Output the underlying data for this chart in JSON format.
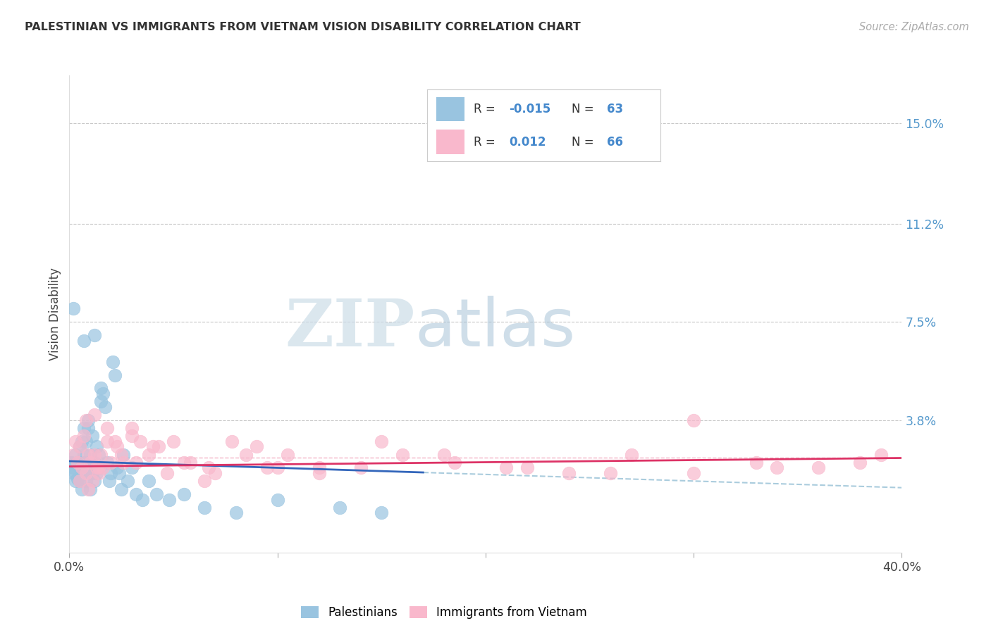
{
  "title": "PALESTINIAN VS IMMIGRANTS FROM VIETNAM VISION DISABILITY CORRELATION CHART",
  "source": "Source: ZipAtlas.com",
  "ylabel": "Vision Disability",
  "xlim": [
    0.0,
    0.4
  ],
  "ylim": [
    -0.012,
    0.168
  ],
  "ytick_values": [
    0.038,
    0.075,
    0.112,
    0.15
  ],
  "ytick_labels": [
    "3.8%",
    "7.5%",
    "11.2%",
    "15.0%"
  ],
  "xtick_values": [
    0.0,
    0.1,
    0.2,
    0.3,
    0.4
  ],
  "xtick_labels": [
    "0.0%",
    "",
    "",
    "",
    "40.0%"
  ],
  "blue_color": "#99c4e0",
  "pink_color": "#f9b8cc",
  "blue_line_color": "#3366bb",
  "pink_line_color": "#dd3366",
  "dashed_color": "#aaccdd",
  "dashed_pink_color": "#f0a0b8",
  "watermark_zip": "ZIP",
  "watermark_atlas": "atlas",
  "bottom_legend_labels": [
    "Palestinians",
    "Immigrants from Vietnam"
  ],
  "background_color": "#ffffff",
  "grid_color": "#c8c8c8",
  "blue_x": [
    0.001,
    0.002,
    0.002,
    0.003,
    0.003,
    0.003,
    0.004,
    0.004,
    0.005,
    0.005,
    0.005,
    0.006,
    0.006,
    0.006,
    0.007,
    0.007,
    0.007,
    0.008,
    0.008,
    0.008,
    0.009,
    0.009,
    0.01,
    0.01,
    0.01,
    0.011,
    0.011,
    0.012,
    0.012,
    0.013,
    0.013,
    0.014,
    0.014,
    0.015,
    0.015,
    0.016,
    0.017,
    0.018,
    0.019,
    0.02,
    0.021,
    0.022,
    0.023,
    0.024,
    0.025,
    0.026,
    0.028,
    0.03,
    0.032,
    0.035,
    0.038,
    0.042,
    0.048,
    0.055,
    0.065,
    0.08,
    0.1,
    0.13,
    0.15,
    0.002,
    0.007,
    0.012,
    0.009
  ],
  "blue_y": [
    0.022,
    0.02,
    0.018,
    0.025,
    0.018,
    0.015,
    0.022,
    0.016,
    0.028,
    0.02,
    0.015,
    0.03,
    0.022,
    0.012,
    0.035,
    0.025,
    0.018,
    0.03,
    0.022,
    0.015,
    0.038,
    0.02,
    0.025,
    0.018,
    0.012,
    0.032,
    0.018,
    0.022,
    0.015,
    0.028,
    0.018,
    0.025,
    0.02,
    0.05,
    0.045,
    0.048,
    0.043,
    0.022,
    0.015,
    0.018,
    0.06,
    0.055,
    0.02,
    0.018,
    0.012,
    0.025,
    0.015,
    0.02,
    0.01,
    0.008,
    0.015,
    0.01,
    0.008,
    0.01,
    0.005,
    0.003,
    0.008,
    0.005,
    0.003,
    0.08,
    0.068,
    0.07,
    0.035
  ],
  "pink_x": [
    0.002,
    0.003,
    0.004,
    0.005,
    0.006,
    0.007,
    0.008,
    0.009,
    0.01,
    0.011,
    0.012,
    0.013,
    0.014,
    0.015,
    0.016,
    0.018,
    0.02,
    0.023,
    0.026,
    0.03,
    0.034,
    0.038,
    0.043,
    0.05,
    0.058,
    0.067,
    0.078,
    0.09,
    0.105,
    0.12,
    0.14,
    0.16,
    0.185,
    0.21,
    0.24,
    0.27,
    0.3,
    0.33,
    0.36,
    0.39,
    0.008,
    0.012,
    0.018,
    0.025,
    0.03,
    0.04,
    0.055,
    0.07,
    0.085,
    0.1,
    0.12,
    0.15,
    0.18,
    0.22,
    0.26,
    0.3,
    0.34,
    0.38,
    0.005,
    0.009,
    0.014,
    0.022,
    0.032,
    0.047,
    0.065,
    0.095
  ],
  "pink_y": [
    0.025,
    0.03,
    0.022,
    0.028,
    0.02,
    0.032,
    0.018,
    0.025,
    0.022,
    0.015,
    0.025,
    0.02,
    0.018,
    0.025,
    0.02,
    0.03,
    0.022,
    0.028,
    0.022,
    0.035,
    0.03,
    0.025,
    0.028,
    0.03,
    0.022,
    0.02,
    0.03,
    0.028,
    0.025,
    0.02,
    0.02,
    0.025,
    0.022,
    0.02,
    0.018,
    0.025,
    0.018,
    0.022,
    0.02,
    0.025,
    0.038,
    0.04,
    0.035,
    0.025,
    0.032,
    0.028,
    0.022,
    0.018,
    0.025,
    0.02,
    0.018,
    0.03,
    0.025,
    0.02,
    0.018,
    0.038,
    0.02,
    0.022,
    0.015,
    0.012,
    0.02,
    0.03,
    0.022,
    0.018,
    0.015,
    0.02
  ],
  "blue_line_x_end": 0.17,
  "pink_line_x_start": 0.0,
  "pink_line_x_end": 0.4,
  "blue_intercept": 0.0225,
  "blue_slope": -0.025,
  "pink_intercept": 0.0205,
  "pink_slope": 0.008
}
